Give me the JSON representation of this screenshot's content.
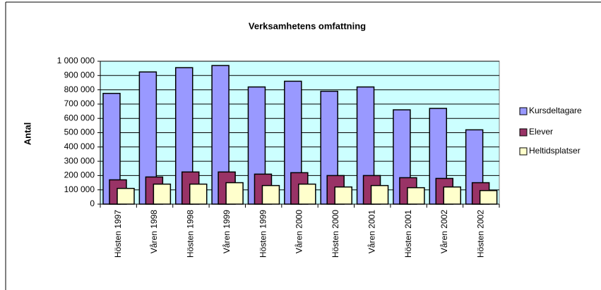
{
  "chart_data": {
    "type": "bar",
    "title": "Verksamhetens omfattning",
    "y_label": "Antal",
    "categories": [
      "Hösten 1997",
      "Våren 1998",
      "Hösten 1998",
      "Våren 1999",
      "Hösten 1999",
      "Våren 2000",
      "Hösten 2000",
      "Våren 2001",
      "Hösten 2001",
      "Våren 2002",
      "Hösten 2002"
    ],
    "series": [
      {
        "name": "Kursdeltagare",
        "color": "#9999ff",
        "values": [
          775000,
          925000,
          955000,
          970000,
          820000,
          860000,
          790000,
          820000,
          660000,
          670000,
          520000
        ]
      },
      {
        "name": "Elever",
        "color": "#993366",
        "values": [
          170000,
          190000,
          225000,
          225000,
          210000,
          220000,
          200000,
          200000,
          185000,
          180000,
          150000
        ]
      },
      {
        "name": "Heltidsplatser",
        "color": "#ffffcc",
        "values": [
          110000,
          140000,
          140000,
          150000,
          130000,
          140000,
          120000,
          130000,
          115000,
          120000,
          95000
        ]
      }
    ],
    "ylim": [
      0,
      1000000
    ],
    "yticks": [
      0,
      {
        "value": 100000,
        "label": "100 000"
      },
      {
        "value": 200000,
        "label": "200 000"
      },
      {
        "value": 300000,
        "label": "300 000"
      },
      {
        "value": 400000,
        "label": "400 000"
      },
      {
        "value": 500000,
        "label": "500 000"
      },
      {
        "value": 600000,
        "label": "600 000"
      },
      {
        "value": 700000,
        "label": "700 000"
      },
      {
        "value": 800000,
        "label": "800 000"
      },
      {
        "value": 900000,
        "label": "900 000"
      },
      {
        "value": 1000000,
        "label": "1 000 000"
      }
    ],
    "grid": true,
    "legend": "right",
    "plot_background": "#ccffff"
  }
}
